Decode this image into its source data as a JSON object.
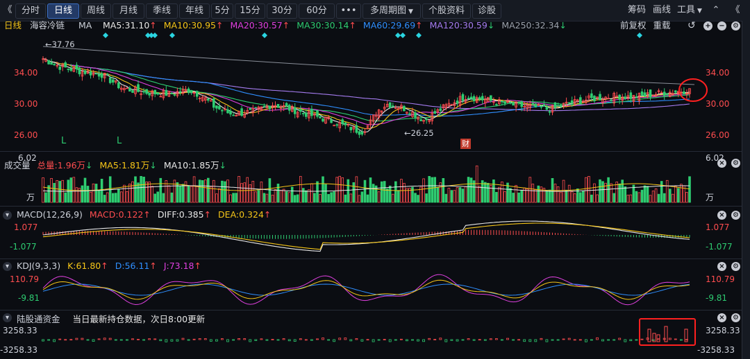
{
  "toolbar": {
    "back": "《",
    "periods": [
      "分时",
      "日线",
      "周线",
      "月线",
      "季线",
      "年线",
      "5分",
      "15分",
      "30分",
      "60分"
    ],
    "active_period": "日线",
    "more": "•••",
    "multi_period": "多周期图",
    "stock_info": "个股资料",
    "diagnose": "诊股",
    "chips": "筹码",
    "draw": "画线",
    "tools": "工具",
    "fwd": "《"
  },
  "kline": {
    "period": "日线",
    "stock_name": "海容冷链",
    "ma_label": "MA",
    "ma": [
      {
        "label": "MA5:31.10",
        "arrow": "↑",
        "color": "#e8e8e8"
      },
      {
        "label": "MA10:30.95",
        "arrow": "↑",
        "color": "#f5c518"
      },
      {
        "label": "MA20:30.57",
        "arrow": "↑",
        "color": "#e040e0"
      },
      {
        "label": "MA30:30.14",
        "arrow": "↑",
        "color": "#2ecc71"
      },
      {
        "label": "MA60:29.69",
        "arrow": "↑",
        "color": "#2f8fff"
      },
      {
        "label": "MA120:30.59",
        "arrow": "↓",
        "color": "#a57cf0"
      },
      {
        "label": "MA250:32.34",
        "arrow": "↓",
        "color": "#9aa0aa"
      }
    ],
    "adjust": "前复权",
    "reset": "重载",
    "y_ticks": [
      "34.00",
      "30.00",
      "26.00"
    ],
    "high_label": "←37.76",
    "low_label": "←26.25",
    "cai_badge": "财",
    "l_marks": [
      "L",
      "L"
    ]
  },
  "volume": {
    "title": "成交量",
    "total": "总量:1.96万",
    "total_arrow": "↓",
    "ma5": "MA5:1.81万",
    "ma5_arrow": "↓",
    "ma10": "MA10:1.85万",
    "ma10_arrow": "↓",
    "y_top": "6.02",
    "unit": "万"
  },
  "macd": {
    "title": "MACD(12,26,9)",
    "macd": "MACD:0.122",
    "macd_arrow": "↑",
    "diff": "DIFF:0.385",
    "diff_arrow": "↑",
    "dea": "DEA:0.324",
    "dea_arrow": "↑",
    "y_top": "1.077",
    "y_bottom": "-1.077"
  },
  "kdj": {
    "title": "KDJ(9,3,3)",
    "k": "K:61.80",
    "k_arrow": "↑",
    "d": "D:56.11",
    "d_arrow": "↑",
    "j": "J:73.18",
    "j_arrow": "↑",
    "y_top": "110.79",
    "y_bottom": "-9.81"
  },
  "northbound": {
    "title": "陆股通资金",
    "note": "当日最新持仓数据，次日8:00更新",
    "y_top": "3258.33",
    "y_bottom": "-3258.33"
  },
  "colors": {
    "up": "#ff4d4f",
    "down": "#2ecc71",
    "bg": "#0b0d12",
    "annotation": "#ff2020"
  }
}
